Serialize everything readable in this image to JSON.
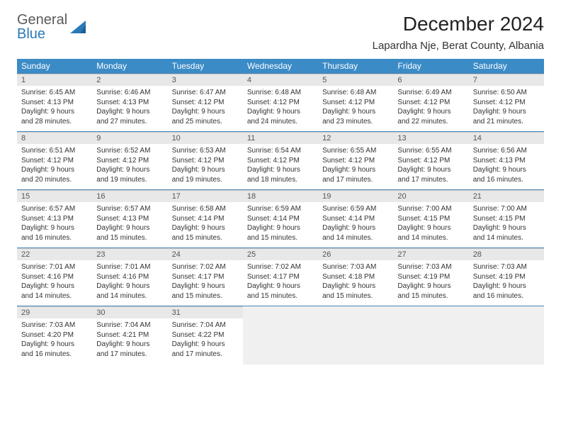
{
  "brand": {
    "word1": "General",
    "word2": "Blue"
  },
  "title": "December 2024",
  "location": "Lapardha Nje, Berat County, Albania",
  "colors": {
    "header_bg": "#3b8bc7",
    "header_text": "#ffffff",
    "daynum_bg": "#e8e8e8",
    "daynum_text": "#555555",
    "row_divider": "#4a87b5",
    "body_text": "#333333",
    "empty_bg": "#f0f0f0",
    "brand_gray": "#5a5a5a",
    "brand_blue": "#2a7ab8"
  },
  "dow": [
    "Sunday",
    "Monday",
    "Tuesday",
    "Wednesday",
    "Thursday",
    "Friday",
    "Saturday"
  ],
  "month_start_dow": 0,
  "days_in_month": 31,
  "days": {
    "1": {
      "sunrise": "6:45 AM",
      "sunset": "4:13 PM",
      "daylight": "9 hours and 28 minutes."
    },
    "2": {
      "sunrise": "6:46 AM",
      "sunset": "4:13 PM",
      "daylight": "9 hours and 27 minutes."
    },
    "3": {
      "sunrise": "6:47 AM",
      "sunset": "4:12 PM",
      "daylight": "9 hours and 25 minutes."
    },
    "4": {
      "sunrise": "6:48 AM",
      "sunset": "4:12 PM",
      "daylight": "9 hours and 24 minutes."
    },
    "5": {
      "sunrise": "6:48 AM",
      "sunset": "4:12 PM",
      "daylight": "9 hours and 23 minutes."
    },
    "6": {
      "sunrise": "6:49 AM",
      "sunset": "4:12 PM",
      "daylight": "9 hours and 22 minutes."
    },
    "7": {
      "sunrise": "6:50 AM",
      "sunset": "4:12 PM",
      "daylight": "9 hours and 21 minutes."
    },
    "8": {
      "sunrise": "6:51 AM",
      "sunset": "4:12 PM",
      "daylight": "9 hours and 20 minutes."
    },
    "9": {
      "sunrise": "6:52 AM",
      "sunset": "4:12 PM",
      "daylight": "9 hours and 19 minutes."
    },
    "10": {
      "sunrise": "6:53 AM",
      "sunset": "4:12 PM",
      "daylight": "9 hours and 19 minutes."
    },
    "11": {
      "sunrise": "6:54 AM",
      "sunset": "4:12 PM",
      "daylight": "9 hours and 18 minutes."
    },
    "12": {
      "sunrise": "6:55 AM",
      "sunset": "4:12 PM",
      "daylight": "9 hours and 17 minutes."
    },
    "13": {
      "sunrise": "6:55 AM",
      "sunset": "4:12 PM",
      "daylight": "9 hours and 17 minutes."
    },
    "14": {
      "sunrise": "6:56 AM",
      "sunset": "4:13 PM",
      "daylight": "9 hours and 16 minutes."
    },
    "15": {
      "sunrise": "6:57 AM",
      "sunset": "4:13 PM",
      "daylight": "9 hours and 16 minutes."
    },
    "16": {
      "sunrise": "6:57 AM",
      "sunset": "4:13 PM",
      "daylight": "9 hours and 15 minutes."
    },
    "17": {
      "sunrise": "6:58 AM",
      "sunset": "4:14 PM",
      "daylight": "9 hours and 15 minutes."
    },
    "18": {
      "sunrise": "6:59 AM",
      "sunset": "4:14 PM",
      "daylight": "9 hours and 15 minutes."
    },
    "19": {
      "sunrise": "6:59 AM",
      "sunset": "4:14 PM",
      "daylight": "9 hours and 14 minutes."
    },
    "20": {
      "sunrise": "7:00 AM",
      "sunset": "4:15 PM",
      "daylight": "9 hours and 14 minutes."
    },
    "21": {
      "sunrise": "7:00 AM",
      "sunset": "4:15 PM",
      "daylight": "9 hours and 14 minutes."
    },
    "22": {
      "sunrise": "7:01 AM",
      "sunset": "4:16 PM",
      "daylight": "9 hours and 14 minutes."
    },
    "23": {
      "sunrise": "7:01 AM",
      "sunset": "4:16 PM",
      "daylight": "9 hours and 14 minutes."
    },
    "24": {
      "sunrise": "7:02 AM",
      "sunset": "4:17 PM",
      "daylight": "9 hours and 15 minutes."
    },
    "25": {
      "sunrise": "7:02 AM",
      "sunset": "4:17 PM",
      "daylight": "9 hours and 15 minutes."
    },
    "26": {
      "sunrise": "7:03 AM",
      "sunset": "4:18 PM",
      "daylight": "9 hours and 15 minutes."
    },
    "27": {
      "sunrise": "7:03 AM",
      "sunset": "4:19 PM",
      "daylight": "9 hours and 15 minutes."
    },
    "28": {
      "sunrise": "7:03 AM",
      "sunset": "4:19 PM",
      "daylight": "9 hours and 16 minutes."
    },
    "29": {
      "sunrise": "7:03 AM",
      "sunset": "4:20 PM",
      "daylight": "9 hours and 16 minutes."
    },
    "30": {
      "sunrise": "7:04 AM",
      "sunset": "4:21 PM",
      "daylight": "9 hours and 17 minutes."
    },
    "31": {
      "sunrise": "7:04 AM",
      "sunset": "4:22 PM",
      "daylight": "9 hours and 17 minutes."
    }
  },
  "labels": {
    "sunrise": "Sunrise: ",
    "sunset": "Sunset: ",
    "daylight": "Daylight: "
  }
}
